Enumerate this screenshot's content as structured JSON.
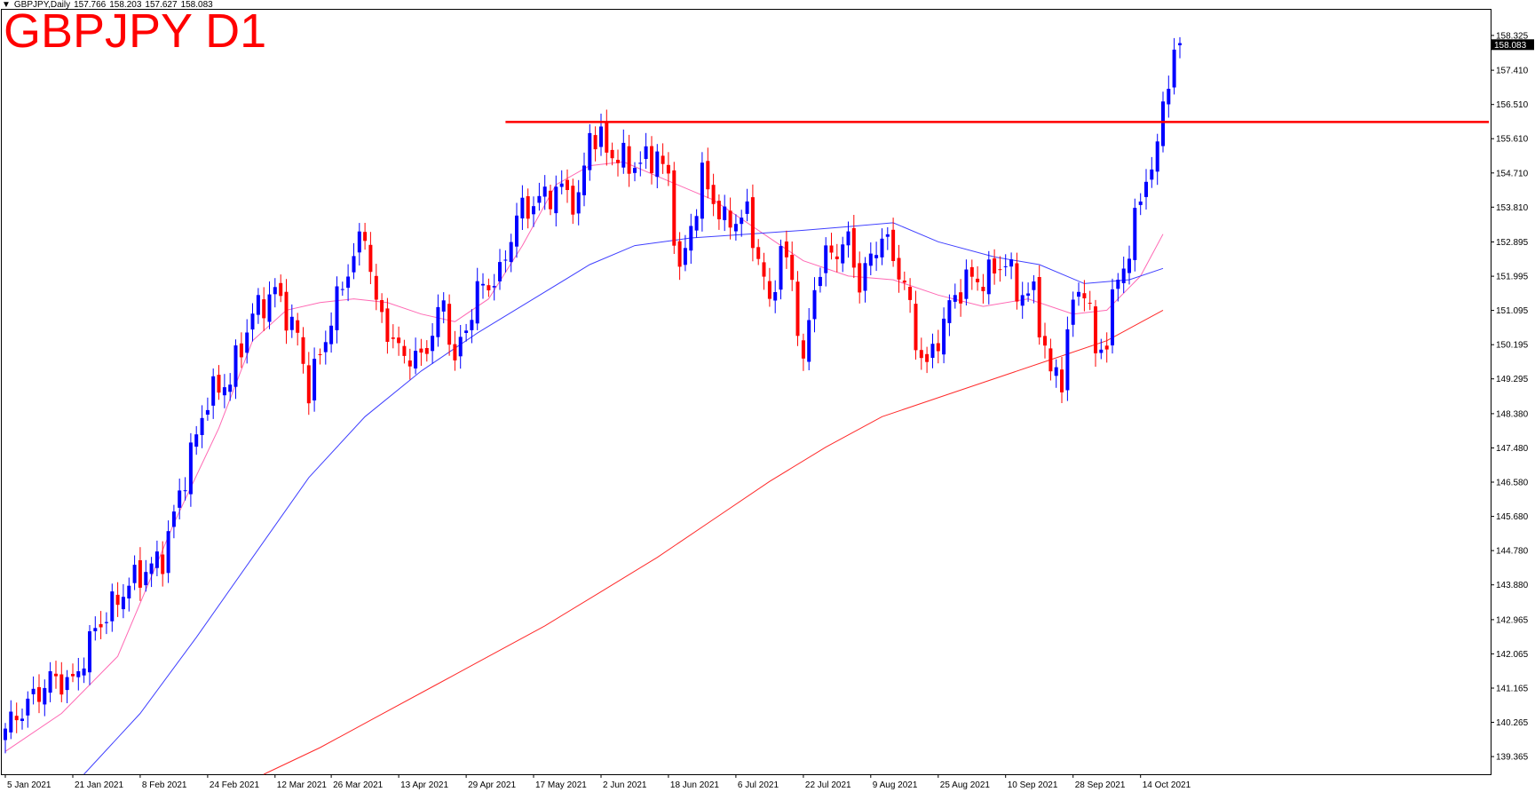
{
  "header": {
    "symbol_timeframe": "GBPJPY,Daily",
    "ohlc": [
      "157.766",
      "158.203",
      "157.627",
      "158.083"
    ],
    "title": "GBPJPY D1"
  },
  "colors": {
    "bull": "#0000ff",
    "bear": "#ff0000",
    "ma_fast": "#ff69b4",
    "ma_mid": "#4040ff",
    "ma_slow": "#ff2a2a",
    "resistance": "#ff0000"
  },
  "chart_data": {
    "type": "candlestick",
    "symbol": "GBPJPY",
    "timeframe": "Daily",
    "title": "GBPJPY D1",
    "ylim": [
      138.9,
      159.0
    ],
    "y_ticks": [
      "158.325",
      "157.410",
      "156.510",
      "155.610",
      "154.710",
      "153.810",
      "152.895",
      "151.995",
      "151.095",
      "150.195",
      "149.295",
      "148.380",
      "147.480",
      "146.580",
      "145.680",
      "144.780",
      "143.880",
      "142.965",
      "142.065",
      "141.165",
      "140.265",
      "139.365"
    ],
    "current_price": "158.083",
    "x_ticks": [
      {
        "label": "5 Jan 2021",
        "index": 0
      },
      {
        "label": "21 Jan 2021",
        "index": 12
      },
      {
        "label": "8 Feb 2021",
        "index": 24
      },
      {
        "label": "24 Feb 2021",
        "index": 36
      },
      {
        "label": "12 Mar 2021",
        "index": 48
      },
      {
        "label": "26 Mar 2021",
        "index": 58
      },
      {
        "label": "13 Apr 2021",
        "index": 70
      },
      {
        "label": "29 Apr 2021",
        "index": 82
      },
      {
        "label": "17 May 2021",
        "index": 94
      },
      {
        "label": "2 Jun 2021",
        "index": 106
      },
      {
        "label": "18 Jun 2021",
        "index": 118
      },
      {
        "label": "6 Jul 2021",
        "index": 130
      },
      {
        "label": "22 Jul 2021",
        "index": 142
      },
      {
        "label": "9 Aug 2021",
        "index": 154
      },
      {
        "label": "25 Aug 2021",
        "index": 166
      },
      {
        "label": "10 Sep 2021",
        "index": 178
      },
      {
        "label": "28 Sep 2021",
        "index": 190
      },
      {
        "label": "14 Oct 2021",
        "index": 202
      }
    ],
    "resistance": {
      "price": 156.05,
      "from_index": 89
    },
    "anchors": [
      [
        0,
        140.1
      ],
      [
        8,
        141.4
      ],
      [
        12,
        141.3
      ],
      [
        16,
        142.7
      ],
      [
        22,
        143.9
      ],
      [
        28,
        144.6
      ],
      [
        32,
        146.8
      ],
      [
        36,
        148.8
      ],
      [
        40,
        149.3
      ],
      [
        44,
        151.0
      ],
      [
        48,
        151.6
      ],
      [
        52,
        150.4
      ],
      [
        54,
        149.0
      ],
      [
        60,
        151.8
      ],
      [
        64,
        153.2
      ],
      [
        66,
        151.2
      ],
      [
        70,
        150.0
      ],
      [
        74,
        149.8
      ],
      [
        78,
        151.3
      ],
      [
        80,
        149.7
      ],
      [
        84,
        151.6
      ],
      [
        88,
        152.0
      ],
      [
        91,
        153.6
      ],
      [
        96,
        154.1
      ],
      [
        99,
        154.3
      ],
      [
        102,
        153.9
      ],
      [
        104,
        155.8
      ],
      [
        108,
        155.2
      ],
      [
        112,
        154.9
      ],
      [
        116,
        155.2
      ],
      [
        118,
        154.5
      ],
      [
        120,
        152.0
      ],
      [
        124,
        154.6
      ],
      [
        128,
        153.4
      ],
      [
        132,
        153.6
      ],
      [
        134,
        152.5
      ],
      [
        136,
        151.2
      ],
      [
        138,
        152.7
      ],
      [
        140,
        151.9
      ],
      [
        142,
        149.6
      ],
      [
        144,
        151.8
      ],
      [
        146,
        152.5
      ],
      [
        150,
        152.9
      ],
      [
        152,
        151.8
      ],
      [
        156,
        153.1
      ],
      [
        160,
        151.8
      ],
      [
        162,
        150.3
      ],
      [
        164,
        149.6
      ],
      [
        168,
        151.2
      ],
      [
        171,
        151.9
      ],
      [
        174,
        151.9
      ],
      [
        178,
        152.4
      ],
      [
        180,
        151.6
      ],
      [
        183,
        151.5
      ],
      [
        186,
        149.4
      ],
      [
        188,
        149.4
      ],
      [
        190,
        151.3
      ],
      [
        192,
        151.8
      ],
      [
        194,
        150.0
      ],
      [
        196,
        150.3
      ],
      [
        198,
        152.1
      ],
      [
        200,
        152.5
      ],
      [
        202,
        154.3
      ],
      [
        204,
        154.7
      ],
      [
        205,
        155.3
      ],
      [
        206,
        157.0
      ],
      [
        207,
        156.8
      ],
      [
        208,
        157.8
      ],
      [
        209,
        158.08
      ]
    ],
    "ma_fast": [
      [
        0,
        139.5
      ],
      [
        10,
        140.5
      ],
      [
        20,
        142.0
      ],
      [
        30,
        145.5
      ],
      [
        38,
        148.0
      ],
      [
        44,
        150.3
      ],
      [
        50,
        151.1
      ],
      [
        56,
        151.3
      ],
      [
        62,
        151.4
      ],
      [
        68,
        151.3
      ],
      [
        74,
        151.0
      ],
      [
        80,
        150.8
      ],
      [
        86,
        151.4
      ],
      [
        92,
        152.8
      ],
      [
        98,
        154.4
      ],
      [
        104,
        154.9
      ],
      [
        110,
        155.0
      ],
      [
        118,
        154.5
      ],
      [
        126,
        154.0
      ],
      [
        134,
        153.2
      ],
      [
        142,
        152.4
      ],
      [
        150,
        152.0
      ],
      [
        158,
        151.9
      ],
      [
        166,
        151.5
      ],
      [
        174,
        151.2
      ],
      [
        182,
        151.4
      ],
      [
        190,
        151.0
      ],
      [
        196,
        151.1
      ],
      [
        202,
        152.0
      ],
      [
        206,
        153.1
      ]
    ],
    "ma_mid": [
      [
        14,
        138.9
      ],
      [
        24,
        140.5
      ],
      [
        34,
        142.5
      ],
      [
        44,
        144.6
      ],
      [
        54,
        146.7
      ],
      [
        64,
        148.3
      ],
      [
        74,
        149.5
      ],
      [
        84,
        150.5
      ],
      [
        94,
        151.4
      ],
      [
        104,
        152.3
      ],
      [
        112,
        152.8
      ],
      [
        122,
        153.0
      ],
      [
        132,
        153.1
      ],
      [
        142,
        153.2
      ],
      [
        150,
        153.3
      ],
      [
        158,
        153.4
      ],
      [
        166,
        152.9
      ],
      [
        176,
        152.5
      ],
      [
        184,
        152.3
      ],
      [
        192,
        151.8
      ],
      [
        200,
        151.9
      ],
      [
        206,
        152.2
      ]
    ],
    "ma_slow": [
      [
        46,
        138.9
      ],
      [
        56,
        139.6
      ],
      [
        66,
        140.4
      ],
      [
        76,
        141.2
      ],
      [
        86,
        142.0
      ],
      [
        96,
        142.8
      ],
      [
        106,
        143.7
      ],
      [
        116,
        144.6
      ],
      [
        126,
        145.6
      ],
      [
        136,
        146.6
      ],
      [
        146,
        147.5
      ],
      [
        156,
        148.3
      ],
      [
        166,
        148.8
      ],
      [
        176,
        149.3
      ],
      [
        186,
        149.8
      ],
      [
        196,
        150.3
      ],
      [
        206,
        151.1
      ]
    ]
  }
}
